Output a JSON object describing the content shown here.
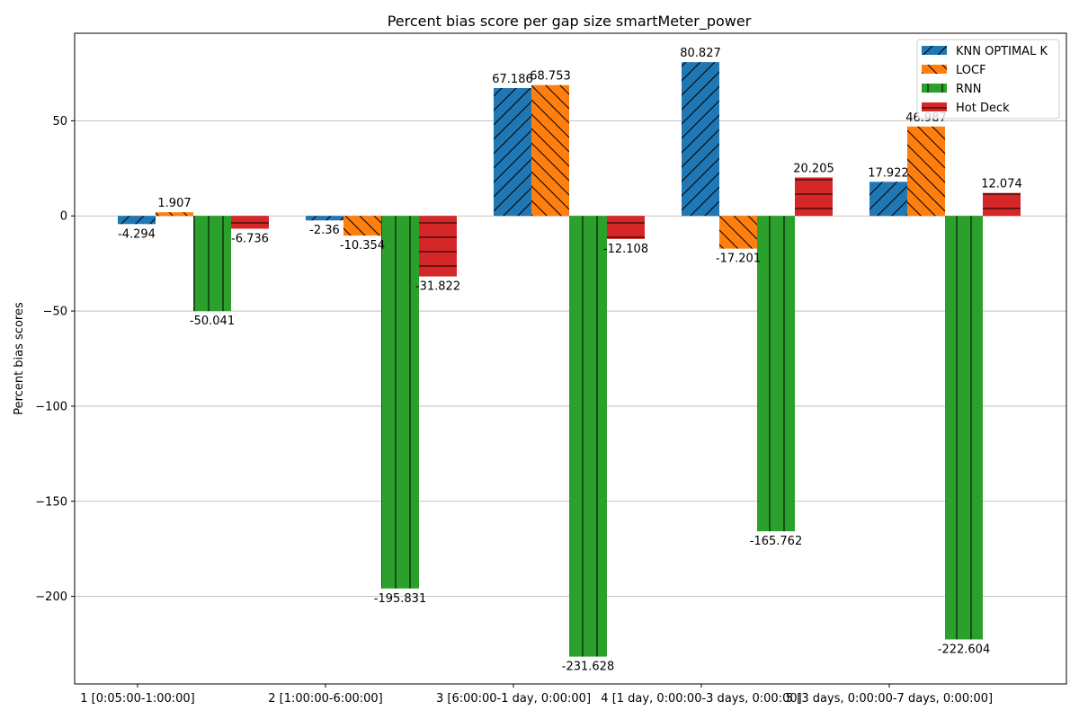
{
  "chart_data": {
    "type": "bar",
    "title": "Percent bias score per gap size smartMeter_power",
    "xlabel": "",
    "ylabel": "Percent bias scores",
    "categories": [
      "1 [0:05:00-1:00:00]",
      "2 [1:00:00-6:00:00]",
      "3 [6:00:00-1 day, 0:00:00]",
      "4 [1 day, 0:00:00-3 days, 0:00:00]",
      "5 [3 days, 0:00:00-7 days, 0:00:00]"
    ],
    "series": [
      {
        "name": "KNN OPTIMAL K",
        "color": "#1f77b4",
        "hatch": "forward-diagonal",
        "values": [
          -4.294,
          -2.36,
          67.186,
          80.827,
          17.922
        ]
      },
      {
        "name": "LOCF",
        "color": "#ff7f0e",
        "hatch": "back-diagonal",
        "values": [
          1.907,
          -10.354,
          68.753,
          -17.201,
          46.987
        ]
      },
      {
        "name": "RNN",
        "color": "#2ca02c",
        "hatch": "vertical",
        "values": [
          -50.041,
          -195.831,
          -231.628,
          -165.762,
          -222.604
        ]
      },
      {
        "name": "Hot Deck",
        "color": "#d62728",
        "hatch": "horizontal",
        "values": [
          -6.736,
          -31.822,
          -12.108,
          20.205,
          12.074
        ]
      }
    ],
    "ylim": [
      -246,
      96
    ],
    "yticks": [
      -200,
      -150,
      -100,
      -50,
      0,
      50
    ],
    "grid": true,
    "legend_position": "top-right"
  }
}
